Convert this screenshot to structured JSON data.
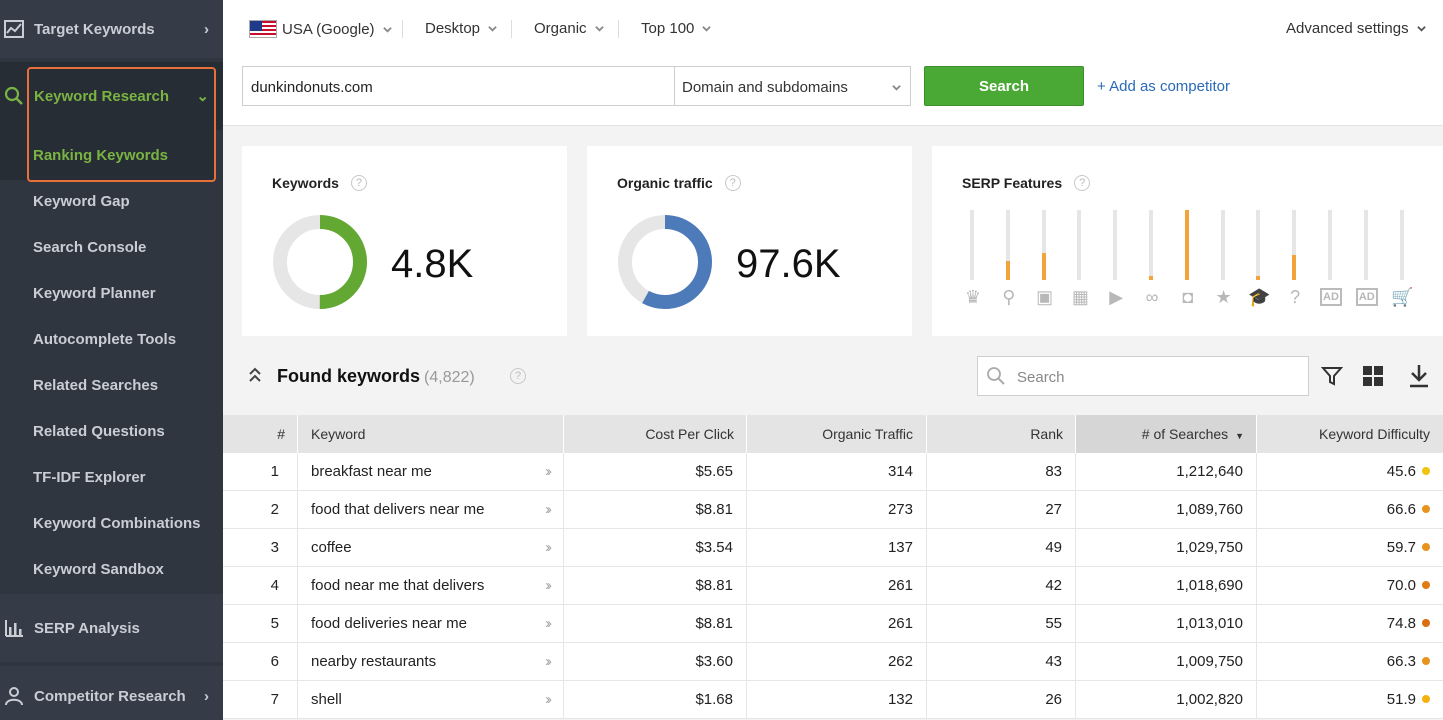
{
  "sidebar": {
    "target_keywords": "Target Keywords",
    "keyword_research": "Keyword Research",
    "items": [
      {
        "label": "Ranking Keywords",
        "active": true
      },
      {
        "label": "Keyword Gap"
      },
      {
        "label": "Search Console"
      },
      {
        "label": "Keyword Planner"
      },
      {
        "label": "Autocomplete Tools"
      },
      {
        "label": "Related Searches"
      },
      {
        "label": "Related Questions"
      },
      {
        "label": "TF-IDF Explorer"
      },
      {
        "label": "Keyword Combinations"
      },
      {
        "label": "Keyword Sandbox"
      }
    ],
    "serp_analysis": "SERP Analysis",
    "competitor_research": "Competitor Research"
  },
  "topbar": {
    "region": "USA (Google)",
    "device": "Desktop",
    "type": "Organic",
    "depth": "Top 100",
    "advanced": "Advanced settings",
    "domain_value": "dunkindonuts.com",
    "scope": "Domain and subdomains",
    "search_label": "Search",
    "add_competitor": "+ Add as competitor"
  },
  "cards": {
    "keywords": {
      "title": "Keywords",
      "value": "4.8K",
      "fraction": 0.5
    },
    "traffic": {
      "title": "Organic traffic",
      "value": "97.6K",
      "fraction": 0.58
    },
    "serp": {
      "title": "SERP Features",
      "features": [
        {
          "icon": "crown-icon",
          "glyph": "♛",
          "level": 0
        },
        {
          "icon": "map-pin-icon",
          "glyph": "⚲",
          "level": 0.27
        },
        {
          "icon": "image-icon",
          "glyph": "▣",
          "level": 0.39
        },
        {
          "icon": "calendar-icon",
          "glyph": "▦",
          "level": 0
        },
        {
          "icon": "video-icon",
          "glyph": "▶",
          "level": 0
        },
        {
          "icon": "link-icon",
          "glyph": "∞",
          "level": 0.06
        },
        {
          "icon": "featured-snippet-icon",
          "glyph": "◘",
          "level": 1.0
        },
        {
          "icon": "star-icon",
          "glyph": "★",
          "level": 0
        },
        {
          "icon": "graduation-cap-icon",
          "glyph": "🎓",
          "level": 0.06
        },
        {
          "icon": "question-icon",
          "glyph": "?",
          "level": 0.36
        },
        {
          "icon": "ad-top-icon",
          "glyph": "AD",
          "level": 0
        },
        {
          "icon": "ad-bottom-icon",
          "glyph": "AD",
          "level": 0
        },
        {
          "icon": "shopping-cart-icon",
          "glyph": "🛒",
          "level": 0
        }
      ]
    }
  },
  "found": {
    "title": "Found keywords",
    "count": "(4,822)",
    "search_placeholder": "Search"
  },
  "table": {
    "headers": {
      "num": "#",
      "keyword": "Keyword",
      "cpc": "Cost Per Click",
      "traffic": "Organic Traffic",
      "rank": "Rank",
      "searches": "# of Searches",
      "kd": "Keyword Difficulty"
    },
    "rows": [
      {
        "num": "1",
        "keyword": "breakfast near me",
        "cpc": "$5.65",
        "traffic": "314",
        "rank": "83",
        "searches": "1,212,640",
        "kd": "45.6",
        "kd_color": "#f2c40f"
      },
      {
        "num": "2",
        "keyword": "food that delivers near me",
        "cpc": "$8.81",
        "traffic": "273",
        "rank": "27",
        "searches": "1,089,760",
        "kd": "66.6",
        "kd_color": "#e8931d"
      },
      {
        "num": "3",
        "keyword": "coffee",
        "cpc": "$3.54",
        "traffic": "137",
        "rank": "49",
        "searches": "1,029,750",
        "kd": "59.7",
        "kd_color": "#e8931d"
      },
      {
        "num": "4",
        "keyword": "food near me that delivers",
        "cpc": "$8.81",
        "traffic": "261",
        "rank": "42",
        "searches": "1,018,690",
        "kd": "70.0",
        "kd_color": "#e07a12"
      },
      {
        "num": "5",
        "keyword": "food deliveries near me",
        "cpc": "$8.81",
        "traffic": "261",
        "rank": "55",
        "searches": "1,013,010",
        "kd": "74.8",
        "kd_color": "#d96d10"
      },
      {
        "num": "6",
        "keyword": "nearby restaurants",
        "cpc": "$3.60",
        "traffic": "262",
        "rank": "43",
        "searches": "1,009,750",
        "kd": "66.3",
        "kd_color": "#e8931d"
      },
      {
        "num": "7",
        "keyword": "shell",
        "cpc": "$1.68",
        "traffic": "132",
        "rank": "26",
        "searches": "1,002,820",
        "kd": "51.9",
        "kd_color": "#f2b20f"
      }
    ]
  }
}
